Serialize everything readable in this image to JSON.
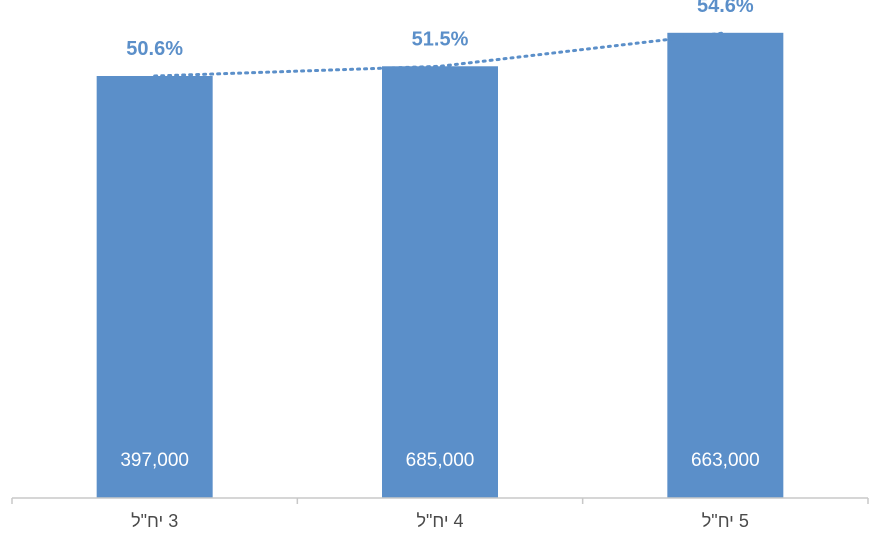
{
  "chart_data": {
    "type": "bar",
    "categories": [
      "3 יח\"ל",
      "4 יח\"ל",
      "5 יח\"ל"
    ],
    "values": [
      397000,
      685000,
      663000
    ],
    "value_labels": [
      "397,000",
      "685,000",
      "663,000"
    ],
    "line_series": {
      "values": [
        50.6,
        51.5,
        54.6
      ],
      "labels": [
        "50.6%",
        "51.5%",
        "54.6%"
      ],
      "style": "dotted"
    },
    "direction": "rtl",
    "grid": false,
    "legend": "none",
    "colors": {
      "bar": "#5b8fc9",
      "accent": "#5b8fc9"
    }
  }
}
